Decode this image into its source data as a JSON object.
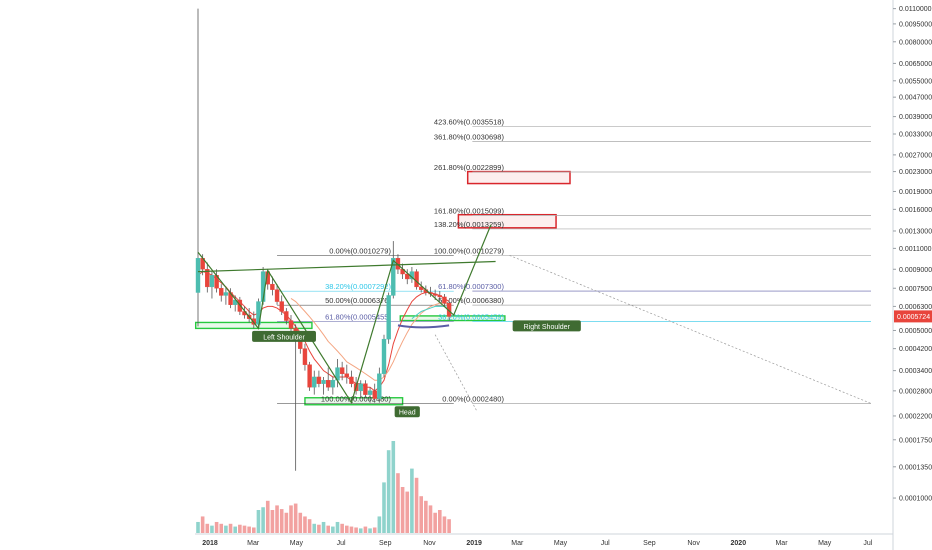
{
  "chart_data": {
    "type": "candlestick",
    "title": "",
    "xlabel": "",
    "ylabel": "",
    "y_scale": "log",
    "ylim": [
      7.5e-05,
      0.0115
    ],
    "grid": false,
    "current_price": "0.0005724",
    "y_ticks": [
      "0.0110000",
      "0.0095000",
      "0.0080000",
      "0.0065000",
      "0.0055000",
      "0.0047000",
      "0.0039000",
      "0.0033000",
      "0.0027000",
      "0.0023000",
      "0.0019000",
      "0.0016000",
      "0.0013000",
      "0.0011000",
      "0.0009000",
      "0.0007500",
      "0.0006300",
      "0.0005000",
      "0.0004200",
      "0.0003400",
      "0.0002800",
      "0.0002200",
      "0.0001750",
      "0.0001350",
      "0.0001000"
    ],
    "x_ticks": [
      "2018",
      "Mar",
      "May",
      "Jul",
      "Sep",
      "Nov",
      "2019",
      "Mar",
      "May",
      "Jul",
      "Sep",
      "Nov",
      "2020",
      "Mar",
      "May",
      "Jul"
    ],
    "candles": [
      {
        "week": 0,
        "o": 0.00072,
        "h": 0.011,
        "l": 0.00052,
        "c": 0.001
      },
      {
        "week": 1,
        "o": 0.001,
        "h": 0.00104,
        "l": 0.00085,
        "c": 0.0009
      },
      {
        "week": 2,
        "o": 0.0009,
        "h": 0.00096,
        "l": 0.00072,
        "c": 0.00076
      },
      {
        "week": 3,
        "o": 0.00076,
        "h": 0.00088,
        "l": 0.00068,
        "c": 0.00085
      },
      {
        "week": 4,
        "o": 0.00085,
        "h": 0.0009,
        "l": 0.00072,
        "c": 0.00075
      },
      {
        "week": 5,
        "o": 0.00075,
        "h": 0.00078,
        "l": 0.00066,
        "c": 0.0007
      },
      {
        "week": 6,
        "o": 0.0007,
        "h": 0.00076,
        "l": 0.00064,
        "c": 0.00072
      },
      {
        "week": 7,
        "o": 0.00072,
        "h": 0.00075,
        "l": 0.00062,
        "c": 0.00064
      },
      {
        "week": 8,
        "o": 0.00064,
        "h": 0.0007,
        "l": 0.0006,
        "c": 0.00067
      },
      {
        "week": 9,
        "o": 0.00067,
        "h": 0.00069,
        "l": 0.00058,
        "c": 0.0006
      },
      {
        "week": 10,
        "o": 0.0006,
        "h": 0.00063,
        "l": 0.00056,
        "c": 0.00058
      },
      {
        "week": 11,
        "o": 0.00058,
        "h": 0.00062,
        "l": 0.00054,
        "c": 0.00056
      },
      {
        "week": 12,
        "o": 0.00056,
        "h": 0.0006,
        "l": 0.00051,
        "c": 0.00053
      },
      {
        "week": 13,
        "o": 0.00053,
        "h": 0.00068,
        "l": 0.00052,
        "c": 0.00066
      },
      {
        "week": 14,
        "o": 0.00066,
        "h": 0.00092,
        "l": 0.00064,
        "c": 0.00088
      },
      {
        "week": 15,
        "o": 0.00088,
        "h": 0.0009,
        "l": 0.00074,
        "c": 0.00078
      },
      {
        "week": 16,
        "o": 0.00078,
        "h": 0.00084,
        "l": 0.0007,
        "c": 0.00074
      },
      {
        "week": 17,
        "o": 0.00074,
        "h": 0.00078,
        "l": 0.00064,
        "c": 0.00066
      },
      {
        "week": 18,
        "o": 0.00066,
        "h": 0.0007,
        "l": 0.00058,
        "c": 0.0006
      },
      {
        "week": 19,
        "o": 0.0006,
        "h": 0.00062,
        "l": 0.00053,
        "c": 0.00055
      },
      {
        "week": 20,
        "o": 0.00055,
        "h": 0.00058,
        "l": 0.00049,
        "c": 0.00051
      },
      {
        "week": 21,
        "o": 0.00051,
        "h": 0.00053,
        "l": 0.00013,
        "c": 0.00046
      },
      {
        "week": 22,
        "o": 0.00046,
        "h": 0.00049,
        "l": 0.0004,
        "c": 0.00042
      },
      {
        "week": 23,
        "o": 0.00042,
        "h": 0.00044,
        "l": 0.00034,
        "c": 0.00036
      },
      {
        "week": 24,
        "o": 0.00036,
        "h": 0.00037,
        "l": 0.00028,
        "c": 0.00029
      },
      {
        "week": 25,
        "o": 0.00029,
        "h": 0.00034,
        "l": 0.00027,
        "c": 0.00032
      },
      {
        "week": 26,
        "o": 0.00032,
        "h": 0.00034,
        "l": 0.00029,
        "c": 0.0003
      },
      {
        "week": 27,
        "o": 0.0003,
        "h": 0.00032,
        "l": 0.00027,
        "c": 0.00031
      },
      {
        "week": 28,
        "o": 0.00031,
        "h": 0.00035,
        "l": 0.00028,
        "c": 0.00029
      },
      {
        "week": 29,
        "o": 0.00029,
        "h": 0.00032,
        "l": 0.00027,
        "c": 0.00031
      },
      {
        "week": 30,
        "o": 0.00031,
        "h": 0.00038,
        "l": 0.00029,
        "c": 0.00035
      },
      {
        "week": 31,
        "o": 0.00035,
        "h": 0.00037,
        "l": 0.00031,
        "c": 0.00033
      },
      {
        "week": 32,
        "o": 0.00033,
        "h": 0.00036,
        "l": 0.0003,
        "c": 0.00032
      },
      {
        "week": 33,
        "o": 0.00032,
        "h": 0.00034,
        "l": 0.00029,
        "c": 0.0003
      },
      {
        "week": 34,
        "o": 0.0003,
        "h": 0.00032,
        "l": 0.00027,
        "c": 0.00028
      },
      {
        "week": 35,
        "o": 0.00028,
        "h": 0.00031,
        "l": 0.00026,
        "c": 0.0003
      },
      {
        "week": 36,
        "o": 0.0003,
        "h": 0.00031,
        "l": 0.00026,
        "c": 0.00027
      },
      {
        "week": 37,
        "o": 0.00027,
        "h": 0.00029,
        "l": 0.00025,
        "c": 0.00028
      },
      {
        "week": 38,
        "o": 0.00028,
        "h": 0.0003,
        "l": 0.00025,
        "c": 0.00026
      },
      {
        "week": 39,
        "o": 0.00026,
        "h": 0.00035,
        "l": 0.00025,
        "c": 0.00033
      },
      {
        "week": 40,
        "o": 0.00033,
        "h": 0.00048,
        "l": 0.00032,
        "c": 0.00046
      },
      {
        "week": 41,
        "o": 0.00046,
        "h": 0.00072,
        "l": 0.00044,
        "c": 0.0007
      },
      {
        "week": 42,
        "o": 0.0007,
        "h": 0.00118,
        "l": 0.00068,
        "c": 0.001
      },
      {
        "week": 43,
        "o": 0.001,
        "h": 0.00104,
        "l": 0.00086,
        "c": 0.0009
      },
      {
        "week": 44,
        "o": 0.0009,
        "h": 0.00095,
        "l": 0.00082,
        "c": 0.00086
      },
      {
        "week": 45,
        "o": 0.00086,
        "h": 0.0009,
        "l": 0.00078,
        "c": 0.00082
      },
      {
        "week": 46,
        "o": 0.00082,
        "h": 0.00092,
        "l": 0.00079,
        "c": 0.00088
      },
      {
        "week": 47,
        "o": 0.00088,
        "h": 0.0009,
        "l": 0.00074,
        "c": 0.00076
      },
      {
        "week": 48,
        "o": 0.00076,
        "h": 0.0008,
        "l": 0.00072,
        "c": 0.00074
      },
      {
        "week": 49,
        "o": 0.00074,
        "h": 0.00077,
        "l": 0.0007,
        "c": 0.00072
      },
      {
        "week": 50,
        "o": 0.00072,
        "h": 0.00076,
        "l": 0.00069,
        "c": 0.00071
      },
      {
        "week": 51,
        "o": 0.00071,
        "h": 0.00074,
        "l": 0.00067,
        "c": 0.0007
      },
      {
        "week": 52,
        "o": 0.0007,
        "h": 0.00073,
        "l": 0.00066,
        "c": 0.00069
      },
      {
        "week": 53,
        "o": 0.00069,
        "h": 0.00071,
        "l": 0.00063,
        "c": 0.00065
      },
      {
        "week": 54,
        "o": 0.00065,
        "h": 0.00067,
        "l": 0.00055,
        "c": 0.000572
      }
    ],
    "volume": [
      0.12,
      0.18,
      0.1,
      0.08,
      0.12,
      0.1,
      0.08,
      0.1,
      0.07,
      0.09,
      0.08,
      0.07,
      0.06,
      0.25,
      0.28,
      0.35,
      0.25,
      0.3,
      0.26,
      0.22,
      0.3,
      0.32,
      0.22,
      0.18,
      0.15,
      0.1,
      0.09,
      0.12,
      0.08,
      0.07,
      0.12,
      0.1,
      0.08,
      0.07,
      0.06,
      0.05,
      0.07,
      0.05,
      0.06,
      0.18,
      0.55,
      0.9,
      1.0,
      0.65,
      0.5,
      0.45,
      0.7,
      0.6,
      0.4,
      0.35,
      0.3,
      0.22,
      0.25,
      0.18,
      0.15
    ],
    "moving_averages": [
      {
        "color": "#e8453c",
        "values": [
          0.00085,
          0.00088,
          0.00087,
          0.00085,
          0.00082,
          0.00079,
          0.00076,
          0.00072,
          0.00069,
          0.00066,
          0.00063,
          0.0006,
          0.00058,
          0.00059,
          0.00062,
          0.00063,
          0.00063,
          0.00062,
          0.0006,
          0.00058,
          0.00055,
          0.00052,
          0.00049,
          0.00045,
          0.00041,
          0.00038,
          0.00036,
          0.00034,
          0.00033,
          0.00032,
          0.00032,
          0.00032,
          0.00032,
          0.00031,
          0.0003,
          0.0003,
          0.00029,
          0.00029,
          0.00028,
          0.00029,
          0.00031,
          0.00036,
          0.00044,
          0.0005,
          0.00056,
          0.00061,
          0.00066,
          0.00069,
          0.00071,
          0.00072,
          0.00072,
          0.00071,
          0.0007,
          0.00068,
          0.00066
        ]
      },
      {
        "color": "#f4a582",
        "values": [
          null,
          null,
          null,
          null,
          null,
          null,
          null,
          null,
          null,
          null,
          null,
          null,
          null,
          null,
          null,
          null,
          null,
          null,
          null,
          null,
          0.00068,
          0.00066,
          0.00063,
          0.0006,
          0.00057,
          0.00054,
          0.00051,
          0.00048,
          0.00045,
          0.00043,
          0.00041,
          0.00039,
          0.00037,
          0.00036,
          0.00035,
          0.00034,
          0.00033,
          0.00032,
          0.00031,
          0.00031,
          0.00032,
          0.00034,
          0.00037,
          0.00041,
          0.00045,
          0.00049,
          0.00053,
          0.00056,
          0.00059,
          0.00061,
          0.00063,
          0.00064,
          0.00065,
          0.00065,
          0.00064
        ]
      },
      {
        "color": "#4dd0c4",
        "values": [
          null,
          null,
          null,
          null,
          null,
          null,
          null,
          null,
          null,
          null,
          null,
          null,
          null,
          null,
          null,
          null,
          null,
          null,
          null,
          null,
          null,
          null,
          null,
          null,
          null,
          null,
          null,
          null,
          null,
          null,
          null,
          null,
          null,
          null,
          null,
          null,
          null,
          null,
          null,
          null,
          null,
          null,
          null,
          null,
          null,
          null,
          0.00056,
          0.00058,
          0.0006,
          0.00061,
          0.00062,
          0.00063,
          0.00063,
          0.00063,
          0.00062
        ]
      }
    ],
    "patterns": {
      "labels": {
        "left_shoulder": "Left Shoulder",
        "head": "Head",
        "right_shoulder": "Right Shoulder"
      },
      "neckline": {
        "from": {
          "week": 0,
          "price": 0.00088
        },
        "to": {
          "week": 64,
          "price": 0.00097
        }
      },
      "zigzag": [
        {
          "week": 0,
          "price": 0.00106
        },
        {
          "week": 13,
          "price": 0.00051
        },
        {
          "week": 15,
          "price": 0.00089
        },
        {
          "week": 33,
          "price": 0.00025
        },
        {
          "week": 42,
          "price": 0.00098
        },
        {
          "week": 55,
          "price": 0.00058
        },
        {
          "week": 63,
          "price": 0.00138
        }
      ]
    },
    "fib_retracement_left": {
      "from": {
        "week": 17,
        "price": 0.0010279
      },
      "to": {
        "week": 42,
        "price": 0.000248
      },
      "levels": [
        {
          "label": "0.00%(0.0010279)",
          "price": 0.0010279,
          "color": "#333333"
        },
        {
          "label": "38.20%(0.0007292)",
          "price": 0.0007292,
          "color": "#2ec7e8"
        },
        {
          "label": "50.00%(0.0006376)",
          "price": 0.0006376,
          "color": "#333333"
        },
        {
          "label": "61.80%(0.0005455)",
          "price": 0.0005455,
          "color": "#5b5ea6"
        },
        {
          "label": "100.00%(0.0002480)",
          "price": 0.000248,
          "color": "#333333"
        }
      ]
    },
    "fib_extension_right": {
      "levels": [
        {
          "label": "423.60%(0.0035518)",
          "price": 0.0035518,
          "color": "#333333"
        },
        {
          "label": "361.80%(0.0030698)",
          "price": 0.0030698,
          "color": "#333333"
        },
        {
          "label": "261.80%(0.0022899)",
          "price": 0.0022899,
          "color": "#333333"
        },
        {
          "label": "161.80%(0.0015099)",
          "price": 0.0015099,
          "color": "#333333"
        },
        {
          "label": "138.20%(0.0013259)",
          "price": 0.0013259,
          "color": "#333333"
        },
        {
          "label": "100.00%(0.0010279)",
          "price": 0.0010279,
          "color": "#333333"
        },
        {
          "label": "61.80%(0.0007300)",
          "price": 0.00073,
          "color": "#5b5ea6"
        },
        {
          "label": "50.00%(0.0006380)",
          "price": 0.000638,
          "color": "#333333"
        },
        {
          "label": "38.20%(0.0005459)",
          "price": 0.0005459,
          "color": "#2ec7e8"
        },
        {
          "label": "0.00%(0.0002480)",
          "price": 0.000248,
          "color": "#333333"
        }
      ]
    },
    "target_boxes": [
      {
        "from_week": 58,
        "to_week": 80,
        "top": 0.0023,
        "bottom": 0.00205,
        "color": "#d9262c"
      },
      {
        "from_week": 56,
        "to_week": 77,
        "top": 0.00152,
        "bottom": 0.00134,
        "color": "#d9262c"
      }
    ],
    "support_boxes": [
      {
        "from_week": -0.5,
        "to_week": 24.5,
        "top": 0.00054,
        "bottom": 0.00051,
        "color": "#27c93f"
      },
      {
        "from_week": 23,
        "to_week": 44,
        "top": 0.000262,
        "bottom": 0.000245,
        "color": "#27c93f"
      },
      {
        "from_week": 43.5,
        "to_week": 66,
        "top": 0.000575,
        "bottom": 0.00055,
        "color": "#27c93f"
      }
    ],
    "colors": {
      "up": "#4dbdb0",
      "down": "#e8453c",
      "up_volume": "#8fd3cc",
      "down_volume": "#f2a1a0",
      "price_tag": "#e8453c",
      "pattern_line": "#3f7a2e",
      "label_bg": "#3f6b32"
    }
  }
}
